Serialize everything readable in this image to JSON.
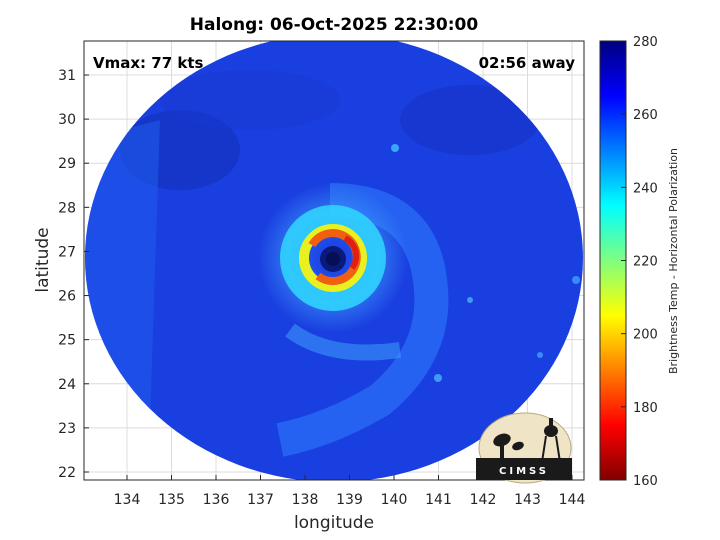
{
  "title": "Halong: 06-Oct-2025 22:30:00",
  "xlabel": "longitude",
  "ylabel": "latitude",
  "annotations": {
    "vmax": "Vmax: 77 kts",
    "away": "02:56 away"
  },
  "x_ticks": [
    "134",
    "135",
    "136",
    "137",
    "138",
    "139",
    "140",
    "141",
    "142",
    "143",
    "144"
  ],
  "y_ticks": [
    "31",
    "30",
    "29",
    "28",
    "27",
    "26",
    "25",
    "24",
    "23",
    "22"
  ],
  "colorbar": {
    "label": "Brightness Temp - Horizontal Polarization",
    "ticks": [
      "280",
      "260",
      "240",
      "220",
      "200",
      "180",
      "160"
    ],
    "range": [
      160,
      280
    ],
    "colormap": "jet"
  },
  "logo": {
    "text": "CIMSS"
  },
  "storm": {
    "center_lon": 138.5,
    "center_lat": 26.8
  },
  "colors": {
    "background_field": "#1a3fe0",
    "eye": "#0a1a7a",
    "eyewall": "#e83010",
    "grid": "#d9d9d9"
  }
}
